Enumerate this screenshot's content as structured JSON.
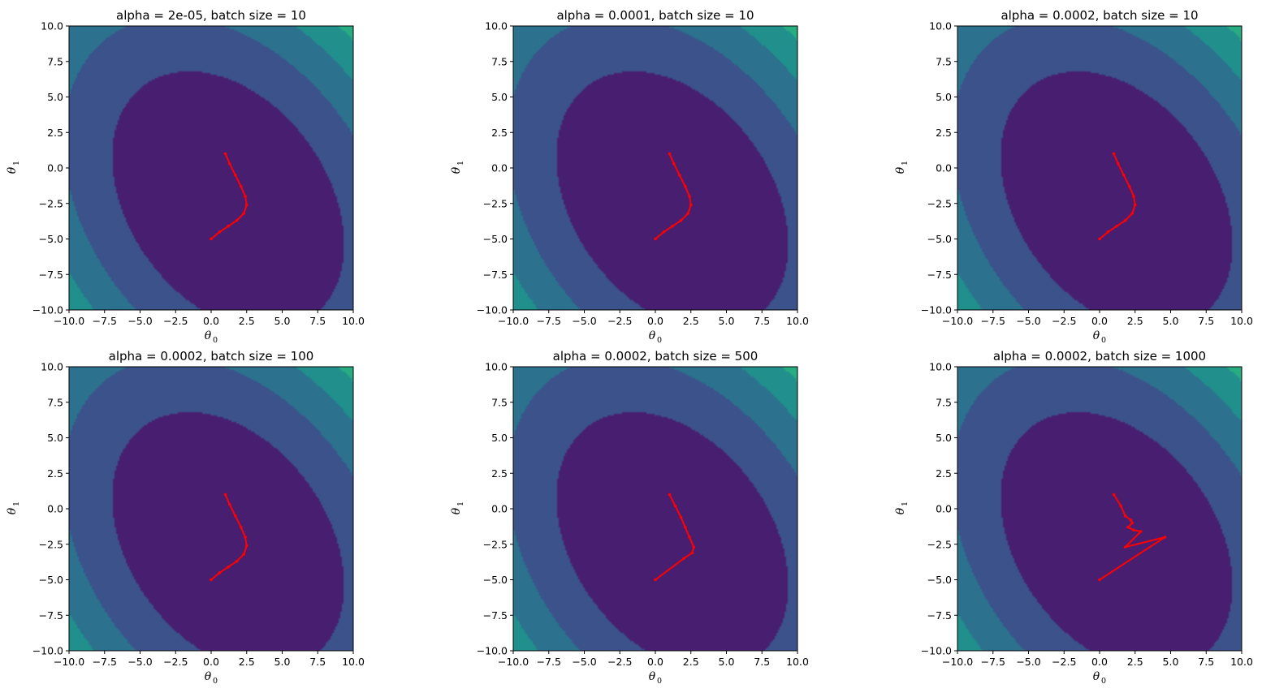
{
  "contour": {
    "levels": [
      {
        "bound": 300,
        "color": "#481f70"
      },
      {
        "bound": 600,
        "color": "#3b528b"
      },
      {
        "bound": 900,
        "color": "#2c728e"
      },
      {
        "bound": 1200,
        "color": "#21908d"
      },
      {
        "bound": 1500,
        "color": "#27ad81"
      },
      {
        "bound": 1800,
        "color": "#5cc863"
      },
      {
        "bound": 99999,
        "color": "#d8e219"
      }
    ],
    "path_color": "#ff0000"
  },
  "chart_data": [
    {
      "type": "contour",
      "title": "alpha = 2e-05, batch size = 10",
      "xlabel": "θ",
      "xlabel_sub": "0",
      "ylabel": "θ",
      "ylabel_sub": "1",
      "xlim": [
        -10,
        10
      ],
      "ylim": [
        -10,
        10
      ],
      "x_ticks": [
        "−10.0",
        "−7.5",
        "−5.0",
        "−2.5",
        "0.0",
        "2.5",
        "5.0",
        "7.5",
        "10.0"
      ],
      "y_ticks": [
        "−10.0",
        "−7.5",
        "−5.0",
        "−2.5",
        "0.0",
        "2.5",
        "5.0",
        "7.5",
        "10.0"
      ],
      "path": [
        [
          1.0,
          1.0
        ],
        [
          1.3,
          0.3
        ],
        [
          1.7,
          -0.5
        ],
        [
          2.1,
          -1.3
        ],
        [
          2.4,
          -2.0
        ],
        [
          2.5,
          -2.6
        ],
        [
          2.3,
          -3.2
        ],
        [
          1.8,
          -3.7
        ],
        [
          1.2,
          -4.1
        ],
        [
          0.6,
          -4.5
        ],
        [
          0.0,
          -5.0
        ]
      ]
    },
    {
      "type": "contour",
      "title": "alpha = 0.0001, batch size = 10",
      "xlabel": "θ",
      "xlabel_sub": "0",
      "ylabel": "θ",
      "ylabel_sub": "1",
      "xlim": [
        -10,
        10
      ],
      "ylim": [
        -10,
        10
      ],
      "x_ticks": [
        "−10.0",
        "−7.5",
        "−5.0",
        "−2.5",
        "0.0",
        "2.5",
        "5.0",
        "7.5",
        "10.0"
      ],
      "y_ticks": [
        "−10.0",
        "−7.5",
        "−5.0",
        "−2.5",
        "0.0",
        "2.5",
        "5.0",
        "7.5",
        "10.0"
      ],
      "path": [
        [
          1.0,
          1.0
        ],
        [
          1.3,
          0.3
        ],
        [
          1.7,
          -0.5
        ],
        [
          2.1,
          -1.3
        ],
        [
          2.4,
          -2.0
        ],
        [
          2.5,
          -2.6
        ],
        [
          2.3,
          -3.2
        ],
        [
          1.8,
          -3.7
        ],
        [
          1.2,
          -4.1
        ],
        [
          0.6,
          -4.5
        ],
        [
          0.0,
          -5.0
        ]
      ]
    },
    {
      "type": "contour",
      "title": "alpha = 0.0002, batch size = 10",
      "xlabel": "θ",
      "xlabel_sub": "0",
      "ylabel": "θ",
      "ylabel_sub": "1",
      "xlim": [
        -10,
        10
      ],
      "ylim": [
        -10,
        10
      ],
      "x_ticks": [
        "−10.0",
        "−7.5",
        "−5.0",
        "−2.5",
        "0.0",
        "2.5",
        "5.0",
        "7.5",
        "10.0"
      ],
      "y_ticks": [
        "−10.0",
        "−7.5",
        "−5.0",
        "−2.5",
        "0.0",
        "2.5",
        "5.0",
        "7.5",
        "10.0"
      ],
      "path": [
        [
          1.0,
          1.0
        ],
        [
          1.3,
          0.3
        ],
        [
          1.7,
          -0.5
        ],
        [
          2.1,
          -1.3
        ],
        [
          2.4,
          -2.0
        ],
        [
          2.5,
          -2.6
        ],
        [
          2.3,
          -3.2
        ],
        [
          1.8,
          -3.7
        ],
        [
          1.2,
          -4.1
        ],
        [
          0.6,
          -4.5
        ],
        [
          0.0,
          -5.0
        ]
      ]
    },
    {
      "type": "contour",
      "title": "alpha = 0.0002, batch size = 100",
      "xlabel": "θ",
      "xlabel_sub": "0",
      "ylabel": "θ",
      "ylabel_sub": "1",
      "xlim": [
        -10,
        10
      ],
      "ylim": [
        -10,
        10
      ],
      "x_ticks": [
        "−10.0",
        "−7.5",
        "−5.0",
        "−2.5",
        "0.0",
        "2.5",
        "5.0",
        "7.5",
        "10.0"
      ],
      "y_ticks": [
        "−10.0",
        "−7.5",
        "−5.0",
        "−2.5",
        "0.0",
        "2.5",
        "5.0",
        "7.5",
        "10.0"
      ],
      "path": [
        [
          1.0,
          1.0
        ],
        [
          1.3,
          0.3
        ],
        [
          1.7,
          -0.5
        ],
        [
          2.1,
          -1.3
        ],
        [
          2.4,
          -2.0
        ],
        [
          2.5,
          -2.6
        ],
        [
          2.3,
          -3.2
        ],
        [
          1.8,
          -3.7
        ],
        [
          1.2,
          -4.1
        ],
        [
          0.6,
          -4.5
        ],
        [
          0.0,
          -5.0
        ]
      ]
    },
    {
      "type": "contour",
      "title": "alpha = 0.0002, batch size = 500",
      "xlabel": "θ",
      "xlabel_sub": "0",
      "ylabel": "θ",
      "ylabel_sub": "1",
      "xlim": [
        -10,
        10
      ],
      "ylim": [
        -10,
        10
      ],
      "x_ticks": [
        "−10.0",
        "−7.5",
        "−5.0",
        "−2.5",
        "0.0",
        "2.5",
        "5.0",
        "7.5",
        "10.0"
      ],
      "y_ticks": [
        "−10.0",
        "−7.5",
        "−5.0",
        "−2.5",
        "0.0",
        "2.5",
        "5.0",
        "7.5",
        "10.0"
      ],
      "path": [
        [
          1.0,
          1.0
        ],
        [
          1.4,
          0.2
        ],
        [
          1.8,
          -0.6
        ],
        [
          2.1,
          -1.3
        ],
        [
          2.4,
          -2.0
        ],
        [
          2.7,
          -2.7
        ],
        [
          2.6,
          -3.1
        ],
        [
          2.0,
          -3.5
        ],
        [
          0.0,
          -5.0
        ]
      ]
    },
    {
      "type": "contour",
      "title": "alpha = 0.0002, batch size = 1000",
      "xlabel": "θ",
      "xlabel_sub": "0",
      "ylabel": "θ",
      "ylabel_sub": "1",
      "xlim": [
        -10,
        10
      ],
      "ylim": [
        -10,
        10
      ],
      "x_ticks": [
        "−10.0",
        "−7.5",
        "−5.0",
        "−2.5",
        "0.0",
        "2.5",
        "5.0",
        "7.5",
        "10.0"
      ],
      "y_ticks": [
        "−10.0",
        "−7.5",
        "−5.0",
        "−2.5",
        "0.0",
        "2.5",
        "5.0",
        "7.5",
        "10.0"
      ],
      "path": [
        [
          1.0,
          1.0
        ],
        [
          1.5,
          0.2
        ],
        [
          1.8,
          -0.5
        ],
        [
          2.2,
          -0.8
        ],
        [
          2.3,
          -1.0
        ],
        [
          2.0,
          -1.3
        ],
        [
          2.4,
          -1.5
        ],
        [
          2.9,
          -1.6
        ],
        [
          1.8,
          -2.7
        ],
        [
          4.6,
          -2.0
        ],
        [
          0.0,
          -5.0
        ]
      ]
    }
  ]
}
